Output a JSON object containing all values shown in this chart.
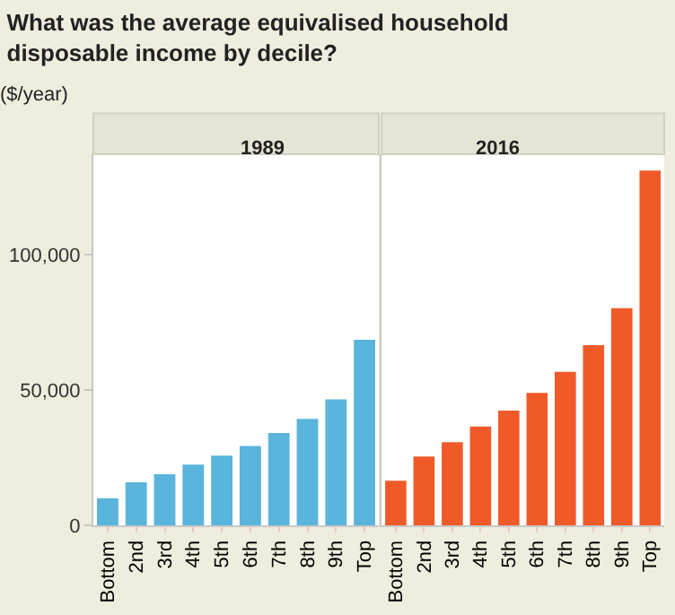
{
  "chart_data": [
    {
      "type": "bar",
      "title": "What was the average equivalised household disposable income by decile?",
      "subtitle": "1989",
      "ylabel": "($/year)",
      "categories": [
        "Bottom",
        "2nd",
        "3rd",
        "4th",
        "5th",
        "6th",
        "7th",
        "8th",
        "9th",
        "Top"
      ],
      "series": [
        {
          "color": "#5ab4dc",
          "values": [
            10000,
            15900,
            18900,
            22400,
            25700,
            29300,
            34100,
            39300,
            46500,
            68500
          ]
        }
      ],
      "ylim": [
        0,
        137000
      ],
      "yticks": [
        0,
        {
          "value": 50000,
          "label": "50,000"
        },
        {
          "value": 100000,
          "label": "100,000"
        }
      ]
    },
    {
      "type": "bar",
      "title": "2016",
      "categories": [
        "Bottom",
        "2nd",
        "3rd",
        "4th",
        "5th",
        "6th",
        "7th",
        "8th",
        "9th",
        "Top"
      ],
      "series": [
        {
          "color": "#f05a28",
          "values": [
            16500,
            25400,
            30700,
            36500,
            42400,
            48900,
            56700,
            66500,
            80200,
            131000
          ]
        }
      ],
      "ylim": [
        0,
        137000
      ],
      "tick_labels": "x"
    }
  ]
}
